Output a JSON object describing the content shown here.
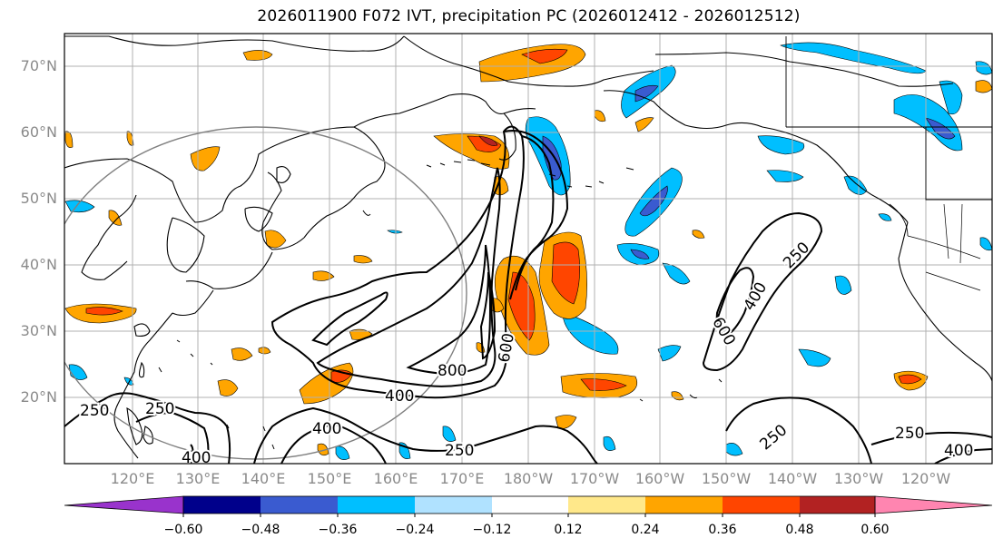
{
  "title": "2026011900 F072 IVT, precipitation PC (2026012412 - 2026012512)",
  "map": {
    "lat_labels": [
      "70°N",
      "60°N",
      "50°N",
      "40°N",
      "30°N",
      "20°N"
    ],
    "lat_values": [
      70,
      60,
      50,
      40,
      30,
      20
    ],
    "lon_labels": [
      "120°E",
      "130°E",
      "140°E",
      "150°E",
      "160°E",
      "170°E",
      "180°W",
      "170°W",
      "160°W",
      "150°W",
      "140°W",
      "130°W",
      "120°W"
    ],
    "lon_values": [
      120,
      130,
      140,
      150,
      160,
      170,
      180,
      190,
      200,
      210,
      220,
      230,
      240
    ],
    "lat_range": [
      10,
      75
    ],
    "lon_range": [
      110,
      245
    ],
    "ivt_contour_levels": [
      "250",
      "400",
      "600",
      "800"
    ],
    "contour_labels": [
      {
        "text": "250",
        "lon": 115.5,
        "lat": 19
      },
      {
        "text": "250",
        "lon": 125,
        "lat": 19
      },
      {
        "text": "400",
        "lon": 131,
        "lat": 11
      },
      {
        "text": "400",
        "lon": 150,
        "lat": 15
      },
      {
        "text": "400",
        "lon": 163,
        "lat": 20
      },
      {
        "text": "800",
        "lon": 172,
        "lat": 24
      },
      {
        "text": "600",
        "lon": 175,
        "lat": 27
      },
      {
        "text": "250",
        "lon": 173,
        "lat": 12
      },
      {
        "text": "400",
        "lon": 212,
        "lat": 37
      },
      {
        "text": "600",
        "lon": 209,
        "lat": 31
      },
      {
        "text": "250",
        "lon": 220,
        "lat": 41
      },
      {
        "text": "250",
        "lon": 216,
        "lat": 19
      },
      {
        "text": "250",
        "lon": 235,
        "lat": 14
      },
      {
        "text": "400",
        "lon": 241,
        "lat": 12
      }
    ]
  },
  "colorbar": {
    "colors": [
      "#9933cc",
      "#00008b",
      "#3a5bd0",
      "#00bfff",
      "#b0e2ff",
      "#ffffff",
      "#ffe88a",
      "#ffa500",
      "#ff4500",
      "#b22222",
      "#ff85b0"
    ],
    "tick_labels": [
      "−0.60",
      "−0.48",
      "−0.36",
      "−0.24",
      "−0.12",
      "0.12",
      "0.24",
      "0.36",
      "0.48",
      "0.60"
    ]
  }
}
